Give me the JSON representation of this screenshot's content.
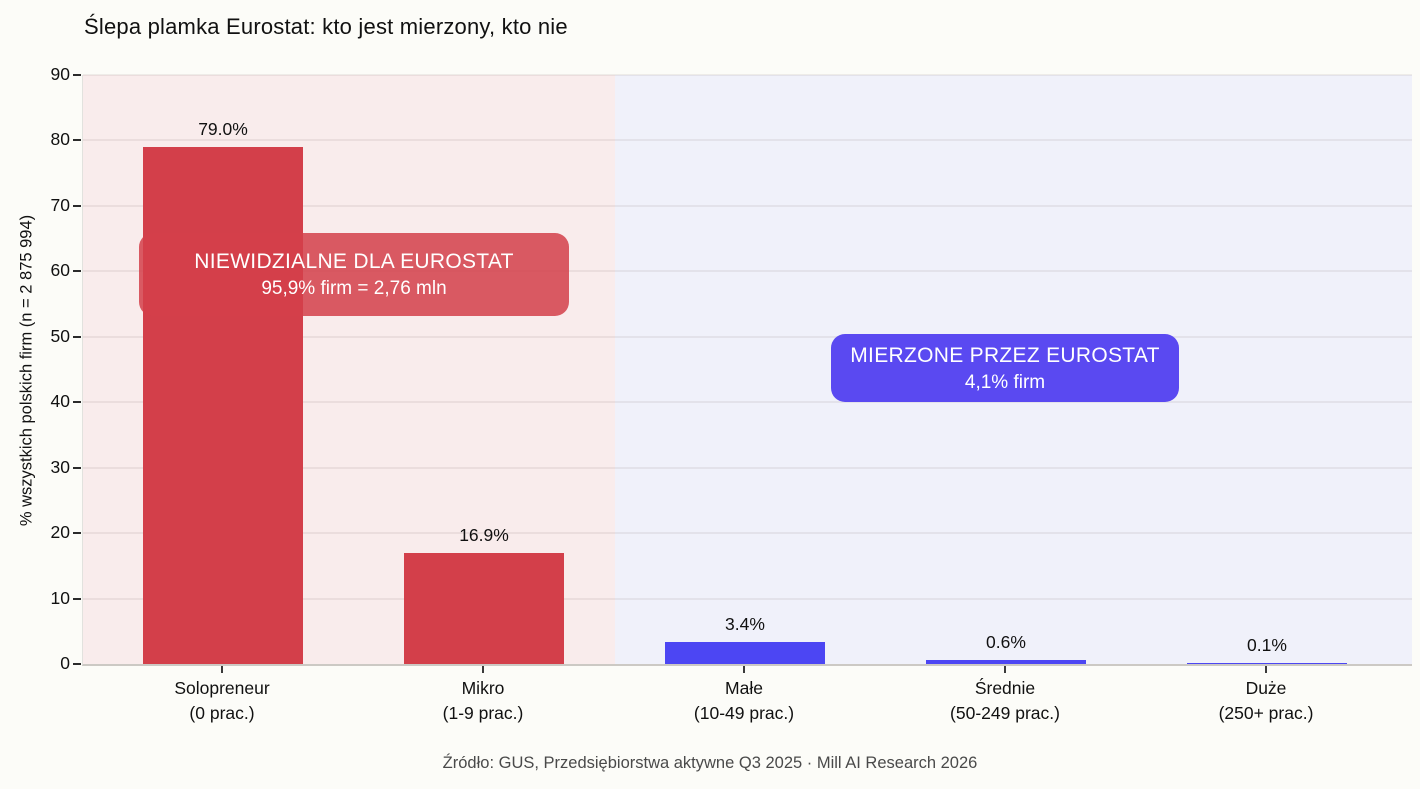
{
  "footer": {
    "text": "Źródło: GUS, Przedsiębiorstwa aktywne Q3 2025 · Mill AI Research 2026"
  },
  "chart_data": {
    "type": "bar",
    "title": "Ślepa plamka Eurostat: kto jest mierzony, kto nie",
    "ylabel": "% wszystkich polskich firm (n = 2 875 994)",
    "xlabel": "",
    "ylim": [
      0,
      90
    ],
    "yticks": [
      0,
      10,
      20,
      30,
      40,
      50,
      60,
      70,
      80,
      90
    ],
    "grid": true,
    "legend_position": "none",
    "categories": [
      {
        "id": "solopreneur",
        "name": "Solopreneur",
        "sub": "(0 prac.)"
      },
      {
        "id": "mikro",
        "name": "Mikro",
        "sub": "(1-9 prac.)"
      },
      {
        "id": "male",
        "name": "Małe",
        "sub": "(10-49 prac.)"
      },
      {
        "id": "srednie",
        "name": "Średnie",
        "sub": "(50-249 prac.)"
      },
      {
        "id": "duze",
        "name": "Duże",
        "sub": "(250+ prac.)"
      }
    ],
    "values": [
      79.0,
      16.9,
      3.4,
      0.6,
      0.1
    ],
    "value_labels": [
      "79.0%",
      "16.9%",
      "3.4%",
      "0.6%",
      "0.1%"
    ],
    "bar_colors": [
      "#d33f4a",
      "#d33f4a",
      "#4c46f3",
      "#4c46f3",
      "#4c46f3"
    ],
    "regions": [
      {
        "id": "niewidzialne",
        "bg": "#f9ecec",
        "box_color": "#d33f4ad9",
        "line1": "NIEWIDZIALNE DLA EUROSTAT",
        "line2": "95,9% firm = 2,76 mln",
        "cat_span": [
          0,
          2
        ]
      },
      {
        "id": "mierzone",
        "bg": "#f0f1fa",
        "box_color": "#5a49f1",
        "line1": "MIERZONE PRZEZ EUROSTAT",
        "line2": "4,1% firm",
        "cat_span": [
          2,
          5
        ]
      }
    ]
  }
}
